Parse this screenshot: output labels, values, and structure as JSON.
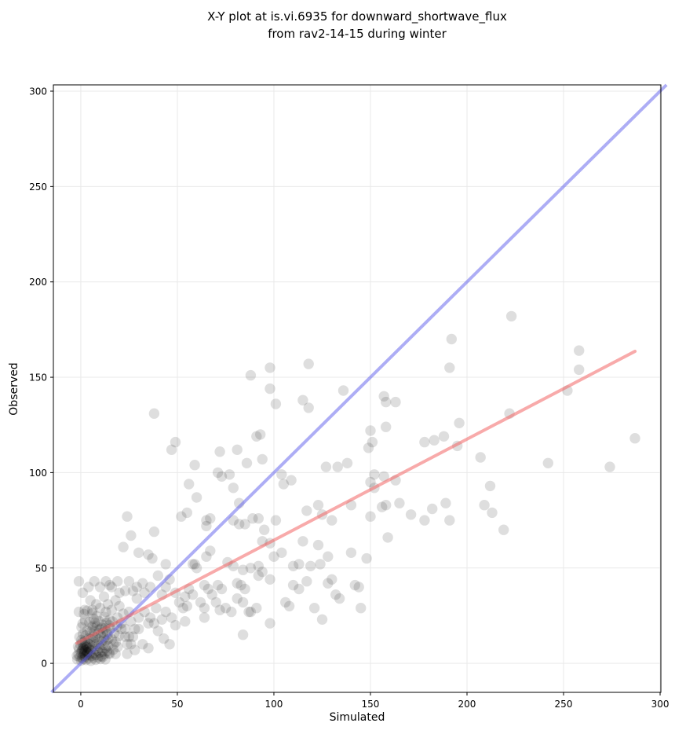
{
  "title": {
    "line1": "X-Y plot at is.vi.6935 for downward_shortwave_flux",
    "line2": "from rav2-14-15 during winter"
  },
  "chart_data": {
    "type": "scatter",
    "title": "X-Y plot at is.vi.6935 for downward_shortwave_flux from rav2-14-15 during winter",
    "xlabel": "Simulated",
    "ylabel": "Observed",
    "xlim": [
      -14.2,
      300.4
    ],
    "ylim": [
      -15.2,
      303.3
    ],
    "xticks": [
      0,
      50,
      100,
      150,
      200,
      250,
      300
    ],
    "yticks": [
      0,
      50,
      100,
      150,
      200,
      250,
      300
    ],
    "grid": true,
    "grid_color": "#e9e9e9",
    "spine_color": "#000000",
    "tick_label_color": "#000000",
    "identity_line": {
      "name": "one-to-one line",
      "color": "#5c5ceb",
      "opacity": 0.5,
      "width": 4,
      "from": [
        -15.2,
        -15.2
      ],
      "to": [
        303.3,
        303.3
      ]
    },
    "regression_line": {
      "name": "linear fit",
      "color": "#f26464",
      "opacity": 0.55,
      "width": 4,
      "from": [
        -2,
        10.6
      ],
      "to": [
        287,
        163.6
      ]
    },
    "point_style": {
      "color": "#000000",
      "opacity": 0.13,
      "radius_px": 6.7
    },
    "points": [
      [
        223,
        182
      ],
      [
        192,
        170
      ],
      [
        258,
        164
      ],
      [
        258,
        154
      ],
      [
        191,
        155
      ],
      [
        118,
        157
      ],
      [
        98,
        155
      ],
      [
        88,
        151
      ],
      [
        252,
        143
      ],
      [
        136,
        143
      ],
      [
        98,
        144
      ],
      [
        157,
        140
      ],
      [
        158,
        137
      ],
      [
        163,
        137
      ],
      [
        115,
        138
      ],
      [
        118,
        134
      ],
      [
        101,
        136
      ],
      [
        38,
        131
      ],
      [
        222,
        131
      ],
      [
        196,
        126
      ],
      [
        158,
        124
      ],
      [
        150,
        122
      ],
      [
        188,
        119
      ],
      [
        287,
        118
      ],
      [
        151,
        116
      ],
      [
        149,
        113
      ],
      [
        178,
        116
      ],
      [
        183,
        117
      ],
      [
        93,
        120
      ],
      [
        91,
        119
      ],
      [
        195,
        114
      ],
      [
        49,
        116
      ],
      [
        47,
        112
      ],
      [
        81,
        112
      ],
      [
        72,
        111
      ],
      [
        59,
        104
      ],
      [
        71,
        100
      ],
      [
        73,
        98
      ],
      [
        86,
        105
      ],
      [
        94,
        107
      ],
      [
        56,
        94
      ],
      [
        79,
        92
      ],
      [
        104,
        99
      ],
      [
        109,
        96
      ],
      [
        105,
        94
      ],
      [
        127,
        103
      ],
      [
        133,
        103
      ],
      [
        138,
        105
      ],
      [
        152,
        99
      ],
      [
        157,
        98
      ],
      [
        150,
        95
      ],
      [
        152,
        92
      ],
      [
        163,
        96
      ],
      [
        77,
        99
      ],
      [
        207,
        108
      ],
      [
        242,
        105
      ],
      [
        274,
        103
      ],
      [
        212,
        93
      ],
      [
        82,
        84
      ],
      [
        55,
        79
      ],
      [
        65,
        75
      ],
      [
        52,
        77
      ],
      [
        79,
        75
      ],
      [
        82,
        73
      ],
      [
        85,
        73
      ],
      [
        89,
        76
      ],
      [
        92,
        76
      ],
      [
        101,
        75
      ],
      [
        95,
        70
      ],
      [
        98,
        63
      ],
      [
        94,
        64
      ],
      [
        117,
        80
      ],
      [
        123,
        83
      ],
      [
        125,
        78
      ],
      [
        130,
        75
      ],
      [
        140,
        83
      ],
      [
        150,
        77
      ],
      [
        156,
        82
      ],
      [
        158,
        83
      ],
      [
        165,
        84
      ],
      [
        159,
        66
      ],
      [
        60,
        87
      ],
      [
        24,
        77
      ],
      [
        26,
        67
      ],
      [
        38,
        69
      ],
      [
        67,
        76
      ],
      [
        65,
        72
      ],
      [
        209,
        83
      ],
      [
        213,
        79
      ],
      [
        189,
        84
      ],
      [
        182,
        81
      ],
      [
        171,
        78
      ],
      [
        178,
        75
      ],
      [
        191,
        75
      ],
      [
        219,
        70
      ],
      [
        115,
        64
      ],
      [
        123,
        62
      ],
      [
        140,
        58
      ],
      [
        148,
        55
      ],
      [
        128,
        56
      ],
      [
        67,
        59
      ],
      [
        65,
        56
      ],
      [
        58,
        52
      ],
      [
        60,
        50
      ],
      [
        76,
        53
      ],
      [
        79,
        51
      ],
      [
        84,
        49
      ],
      [
        88,
        50
      ],
      [
        92,
        51
      ],
      [
        110,
        51
      ],
      [
        113,
        52
      ],
      [
        119,
        51
      ],
      [
        124,
        52
      ],
      [
        100,
        56
      ],
      [
        104,
        58
      ],
      [
        94,
        48
      ],
      [
        44,
        52
      ],
      [
        59,
        52
      ],
      [
        30,
        58
      ],
      [
        35,
        57
      ],
      [
        37,
        55
      ],
      [
        22,
        61
      ],
      [
        130,
        44
      ],
      [
        128,
        42
      ],
      [
        142,
        41
      ],
      [
        144,
        40
      ],
      [
        110,
        41
      ],
      [
        113,
        39
      ],
      [
        117,
        43
      ],
      [
        98,
        44
      ],
      [
        92,
        46
      ],
      [
        81,
        42
      ],
      [
        83,
        41
      ],
      [
        85,
        39
      ],
      [
        71,
        41
      ],
      [
        73,
        39
      ],
      [
        64,
        41
      ],
      [
        66,
        39
      ],
      [
        68,
        36
      ],
      [
        56,
        39
      ],
      [
        58,
        36
      ],
      [
        54,
        35
      ],
      [
        51,
        32
      ],
      [
        62,
        32
      ],
      [
        70,
        32
      ],
      [
        81,
        34
      ],
      [
        84,
        32
      ],
      [
        106,
        32
      ],
      [
        132,
        36
      ],
      [
        134,
        34
      ],
      [
        -1,
        43
      ],
      [
        15,
        41
      ],
      [
        32,
        42
      ],
      [
        20,
        37
      ],
      [
        27,
        38
      ],
      [
        29,
        34
      ],
      [
        49,
        37
      ],
      [
        5,
        33
      ],
      [
        36,
        40
      ],
      [
        42,
        36
      ],
      [
        33,
        37
      ],
      [
        29,
        40
      ],
      [
        25,
        43
      ],
      [
        23,
        38
      ],
      [
        19,
        43
      ],
      [
        16,
        40
      ],
      [
        13,
        43
      ],
      [
        10,
        40
      ],
      [
        7,
        43
      ],
      [
        4,
        40
      ],
      [
        1,
        37
      ],
      [
        44,
        40
      ],
      [
        46,
        44
      ],
      [
        40,
        46
      ],
      [
        12,
        35
      ],
      [
        18,
        33
      ],
      [
        14,
        31
      ],
      [
        8,
        31
      ],
      [
        53,
        29
      ],
      [
        55,
        30
      ],
      [
        64,
        29
      ],
      [
        72,
        28
      ],
      [
        75,
        29
      ],
      [
        91,
        29
      ],
      [
        88,
        27
      ],
      [
        108,
        30
      ],
      [
        121,
        29
      ],
      [
        145,
        29
      ],
      [
        78,
        27
      ],
      [
        125,
        23
      ],
      [
        98,
        21
      ],
      [
        87,
        27
      ],
      [
        54,
        22
      ],
      [
        64,
        24
      ],
      [
        39,
        29
      ],
      [
        42,
        23
      ],
      [
        35,
        21
      ],
      [
        30,
        18
      ],
      [
        26,
        22
      ],
      [
        28,
        18
      ],
      [
        30,
        24
      ],
      [
        33,
        27
      ],
      [
        36,
        24
      ],
      [
        38,
        21
      ],
      [
        21,
        21
      ],
      [
        23,
        18
      ],
      [
        19,
        24
      ],
      [
        44,
        27
      ],
      [
        47,
        24
      ],
      [
        49,
        20
      ],
      [
        25,
        27
      ],
      [
        22,
        26
      ],
      [
        6,
        28
      ],
      [
        10,
        29
      ],
      [
        13,
        27
      ],
      [
        2,
        28
      ],
      [
        16,
        28
      ],
      [
        20,
        30
      ],
      [
        27,
        14
      ],
      [
        32,
        10
      ],
      [
        35,
        8
      ],
      [
        21,
        18
      ],
      [
        23,
        14
      ],
      [
        24,
        10
      ],
      [
        17,
        10
      ],
      [
        18,
        5
      ],
      [
        15,
        5
      ],
      [
        40,
        17
      ],
      [
        43,
        13
      ],
      [
        46,
        10
      ],
      [
        25,
        14
      ],
      [
        26,
        10
      ],
      [
        28,
        7
      ],
      [
        24,
        5
      ],
      [
        84,
        15
      ],
      [
        -2,
        4
      ],
      [
        -1,
        27
      ],
      [
        -1.8,
        2.1
      ],
      [
        -1.2,
        4.8
      ],
      [
        -0.9,
        7.5
      ],
      [
        -0.5,
        3.2
      ],
      [
        -0.2,
        9.8
      ],
      [
        0.1,
        5.5
      ],
      [
        0.3,
        12.2
      ],
      [
        0.6,
        2.8
      ],
      [
        0.8,
        7.1
      ],
      [
        1.1,
        15.4
      ],
      [
        1.3,
        4.1
      ],
      [
        1.6,
        9.2
      ],
      [
        1.8,
        6.3
      ],
      [
        2.1,
        11.8
      ],
      [
        2.3,
        3.5
      ],
      [
        2.6,
        14.6
      ],
      [
        2.8,
        8.4
      ],
      [
        3.1,
        5.9
      ],
      [
        3.3,
        17.2
      ],
      [
        3.6,
        10.5
      ],
      [
        3.8,
        7.7
      ],
      [
        4.1,
        13.1
      ],
      [
        4.3,
        4.6
      ],
      [
        4.6,
        9.9
      ],
      [
        4.8,
        16.3
      ],
      [
        5.1,
        6.8
      ],
      [
        5.3,
        12.7
      ],
      [
        5.6,
        3.9
      ],
      [
        5.8,
        18.8
      ],
      [
        6.1,
        8.9
      ],
      [
        6.3,
        14.2
      ],
      [
        6.6,
        5.2
      ],
      [
        6.8,
        11.1
      ],
      [
        7.1,
        16.9
      ],
      [
        7.3,
        7.4
      ],
      [
        7.6,
        13.6
      ],
      [
        7.8,
        4.4
      ],
      [
        8.1,
        10.2
      ],
      [
        8.3,
        19.5
      ],
      [
        8.6,
        6.6
      ],
      [
        8.8,
        15.7
      ],
      [
        9.1,
        9.4
      ],
      [
        9.3,
        12.4
      ],
      [
        9.6,
        5.7
      ],
      [
        9.8,
        17.8
      ],
      [
        10.1,
        8.1
      ],
      [
        10.3,
        14.9
      ],
      [
        10.6,
        3.7
      ],
      [
        10.8,
        11.5
      ],
      [
        11.1,
        20.3
      ],
      [
        11.3,
        6.1
      ],
      [
        11.6,
        16.1
      ],
      [
        11.8,
        9.7
      ],
      [
        12.1,
        13.3
      ],
      [
        12.3,
        4.9
      ],
      [
        12.6,
        18.4
      ],
      [
        12.8,
        7.9
      ],
      [
        13.1,
        11.9
      ],
      [
        13.3,
        21.2
      ],
      [
        13.6,
        6.4
      ],
      [
        13.8,
        15.1
      ],
      [
        14.1,
        9.1
      ],
      [
        14.3,
        12.9
      ],
      [
        14.6,
        5.4
      ],
      [
        14.8,
        19.9
      ],
      [
        0.2,
        1.5
      ],
      [
        1.4,
        2.2
      ],
      [
        2.7,
        1.8
      ],
      [
        3.9,
        2.6
      ],
      [
        5.2,
        1.4
      ],
      [
        6.4,
        2.9
      ],
      [
        7.7,
        1.9
      ],
      [
        8.9,
        3.1
      ],
      [
        10.2,
        2.3
      ],
      [
        11.4,
        3.4
      ],
      [
        12.7,
        2.1
      ],
      [
        0.9,
        20.8
      ],
      [
        2.2,
        22.5
      ],
      [
        4.4,
        21.6
      ],
      [
        6.7,
        23.4
      ],
      [
        8.2,
        24.8
      ],
      [
        1.7,
        25.9
      ],
      [
        3.4,
        27.6
      ],
      [
        5.9,
        26.2
      ],
      [
        9.4,
        22.1
      ],
      [
        12.2,
        24.3
      ],
      [
        15.3,
        18.2
      ],
      [
        16.1,
        12.6
      ],
      [
        16.8,
        7.2
      ],
      [
        17.4,
        15.8
      ],
      [
        18.2,
        11.2
      ],
      [
        19.1,
        8.6
      ],
      [
        19.8,
        14.4
      ],
      [
        16.4,
        21.9
      ],
      [
        18.8,
        19.3
      ],
      [
        13.4,
        16.8
      ],
      [
        14.9,
        22.8
      ],
      [
        -0.7,
        13.8
      ],
      [
        -1.4,
        8.8
      ],
      [
        0.4,
        18.9
      ],
      [
        6.2,
        19.7
      ],
      [
        10.9,
        18.6
      ],
      [
        7.4,
        21.3
      ],
      [
        0.5,
        6.5
      ],
      [
        1.2,
        8.2
      ],
      [
        2.4,
        6.9
      ],
      [
        3.2,
        8.8
      ],
      [
        1.9,
        5.1
      ],
      [
        2.9,
        4.3
      ],
      [
        0.7,
        10.9
      ],
      [
        3.7,
        6.1
      ],
      [
        1.5,
        7.6
      ],
      [
        2.5,
        9.6
      ],
      [
        4.2,
        7.9
      ],
      [
        3.5,
        5.5
      ]
    ]
  }
}
